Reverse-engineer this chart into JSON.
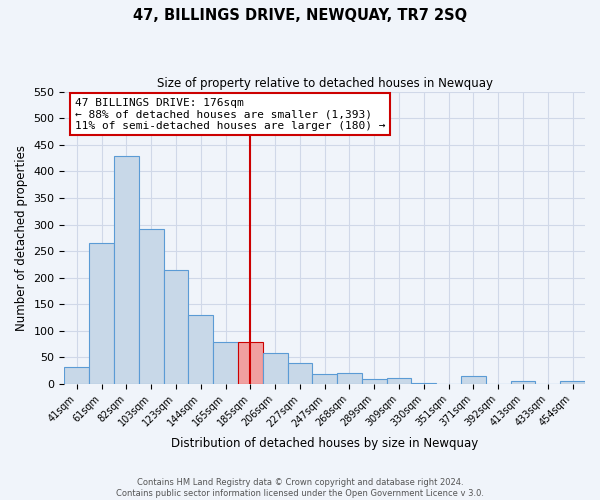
{
  "title": "47, BILLINGS DRIVE, NEWQUAY, TR7 2SQ",
  "subtitle": "Size of property relative to detached houses in Newquay",
  "xlabel": "Distribution of detached houses by size in Newquay",
  "ylabel": "Number of detached properties",
  "bin_labels": [
    "41sqm",
    "61sqm",
    "82sqm",
    "103sqm",
    "123sqm",
    "144sqm",
    "165sqm",
    "185sqm",
    "206sqm",
    "227sqm",
    "247sqm",
    "268sqm",
    "289sqm",
    "309sqm",
    "330sqm",
    "351sqm",
    "371sqm",
    "392sqm",
    "413sqm",
    "433sqm",
    "454sqm"
  ],
  "bar_heights": [
    32,
    265,
    428,
    291,
    214,
    130,
    78,
    78,
    59,
    40,
    18,
    20,
    10,
    12,
    2,
    0,
    15,
    0,
    5,
    0,
    5
  ],
  "bar_color": "#c8d8e8",
  "bar_edge_color": "#5b9bd5",
  "highlight_bar_index": 7,
  "highlight_bar_color": "#f0a0a0",
  "highlight_bar_edge_color": "#cc0000",
  "vline_x": 7,
  "vline_color": "#cc0000",
  "ylim": [
    0,
    550
  ],
  "yticks": [
    0,
    50,
    100,
    150,
    200,
    250,
    300,
    350,
    400,
    450,
    500,
    550
  ],
  "annotation_title": "47 BILLINGS DRIVE: 176sqm",
  "annotation_line1": "← 88% of detached houses are smaller (1,393)",
  "annotation_line2": "11% of semi-detached houses are larger (180) →",
  "annotation_box_color": "#ffffff",
  "annotation_box_edge": "#cc0000",
  "footer1": "Contains HM Land Registry data © Crown copyright and database right 2024.",
  "footer2": "Contains public sector information licensed under the Open Government Licence v 3.0.",
  "grid_color": "#d0d8e8",
  "background_color": "#f0f4fa"
}
